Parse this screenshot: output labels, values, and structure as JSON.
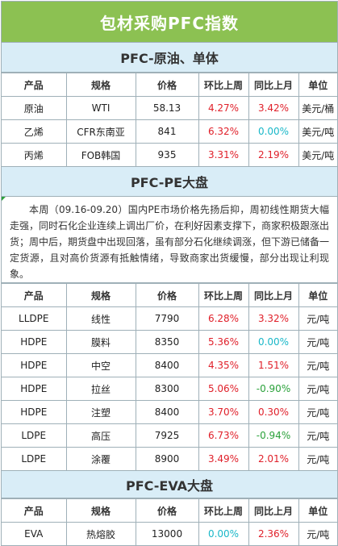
{
  "title": "包材采购PFC指数",
  "sections": [
    {
      "heading": "PFC-原油、单体",
      "columns": [
        "产品",
        "规格",
        "价格",
        "环比上周",
        "同比上月",
        "单位"
      ],
      "rows": [
        {
          "product": "原油",
          "spec": "WTI",
          "price": "58.13",
          "wow": "4.27%",
          "mom": "3.42%",
          "unit": "美元/桶",
          "wow_color": "red",
          "mom_color": "red"
        },
        {
          "product": "乙烯",
          "spec": "CFR东南亚",
          "price": "841",
          "wow": "6.32%",
          "mom": "0.00%",
          "unit": "美元/吨",
          "wow_color": "red",
          "mom_color": "blue"
        },
        {
          "product": "丙烯",
          "spec": "FOB韩国",
          "price": "935",
          "wow": "3.31%",
          "mom": "2.19%",
          "unit": "美元/吨",
          "wow_color": "red",
          "mom_color": "red"
        }
      ]
    },
    {
      "heading": "PFC-PE大盘",
      "paragraph": "本周（09.16-09.20）国内PE市场价格先扬后抑，周初线性期货大幅走强，同时石化企业连续上调出厂价，在利好因素支撑下，商家积极跟涨出货；周中后，期货盘中出现回落，虽有部分石化继续调涨，但下游已储备一定货源，且对高价货源有抵触情绪，导致商家出货缓慢，部分出现让利现象。",
      "columns": [
        "产品",
        "规格",
        "价格",
        "环比上周",
        "同比上月",
        "单位"
      ],
      "rows": [
        {
          "product": "LLDPE",
          "spec": "线性",
          "price": "7790",
          "wow": "6.28%",
          "mom": "3.32%",
          "unit": "元/吨",
          "wow_color": "red",
          "mom_color": "red"
        },
        {
          "product": "HDPE",
          "spec": "膜料",
          "price": "8350",
          "wow": "5.36%",
          "mom": "0.00%",
          "unit": "元/吨",
          "wow_color": "red",
          "mom_color": "blue"
        },
        {
          "product": "HDPE",
          "spec": "中空",
          "price": "8400",
          "wow": "4.35%",
          "mom": "1.51%",
          "unit": "元/吨",
          "wow_color": "red",
          "mom_color": "red"
        },
        {
          "product": "HDPE",
          "spec": "拉丝",
          "price": "8300",
          "wow": "5.06%",
          "mom": "-0.90%",
          "unit": "元/吨",
          "wow_color": "red",
          "mom_color": "green"
        },
        {
          "product": "HDPE",
          "spec": "注塑",
          "price": "8400",
          "wow": "3.70%",
          "mom": "0.30%",
          "unit": "元/吨",
          "wow_color": "red",
          "mom_color": "red"
        },
        {
          "product": "LDPE",
          "spec": "高压",
          "price": "7925",
          "wow": "6.73%",
          "mom": "-0.94%",
          "unit": "元/吨",
          "wow_color": "red",
          "mom_color": "green"
        },
        {
          "product": "LDPE",
          "spec": "涂覆",
          "price": "8900",
          "wow": "3.49%",
          "mom": "2.01%",
          "unit": "元/吨",
          "wow_color": "red",
          "mom_color": "red"
        }
      ]
    },
    {
      "heading": "PFC-EVA大盘",
      "columns": [
        "产品",
        "规格",
        "价格",
        "环比上周",
        "同比上月",
        "单位"
      ],
      "rows": [
        {
          "product": "EVA",
          "spec": "热熔胶",
          "price": "13000",
          "wow": "0.00%",
          "mom": "2.36%",
          "unit": "元/吨",
          "wow_color": "blue",
          "mom_color": "red"
        }
      ]
    }
  ]
}
